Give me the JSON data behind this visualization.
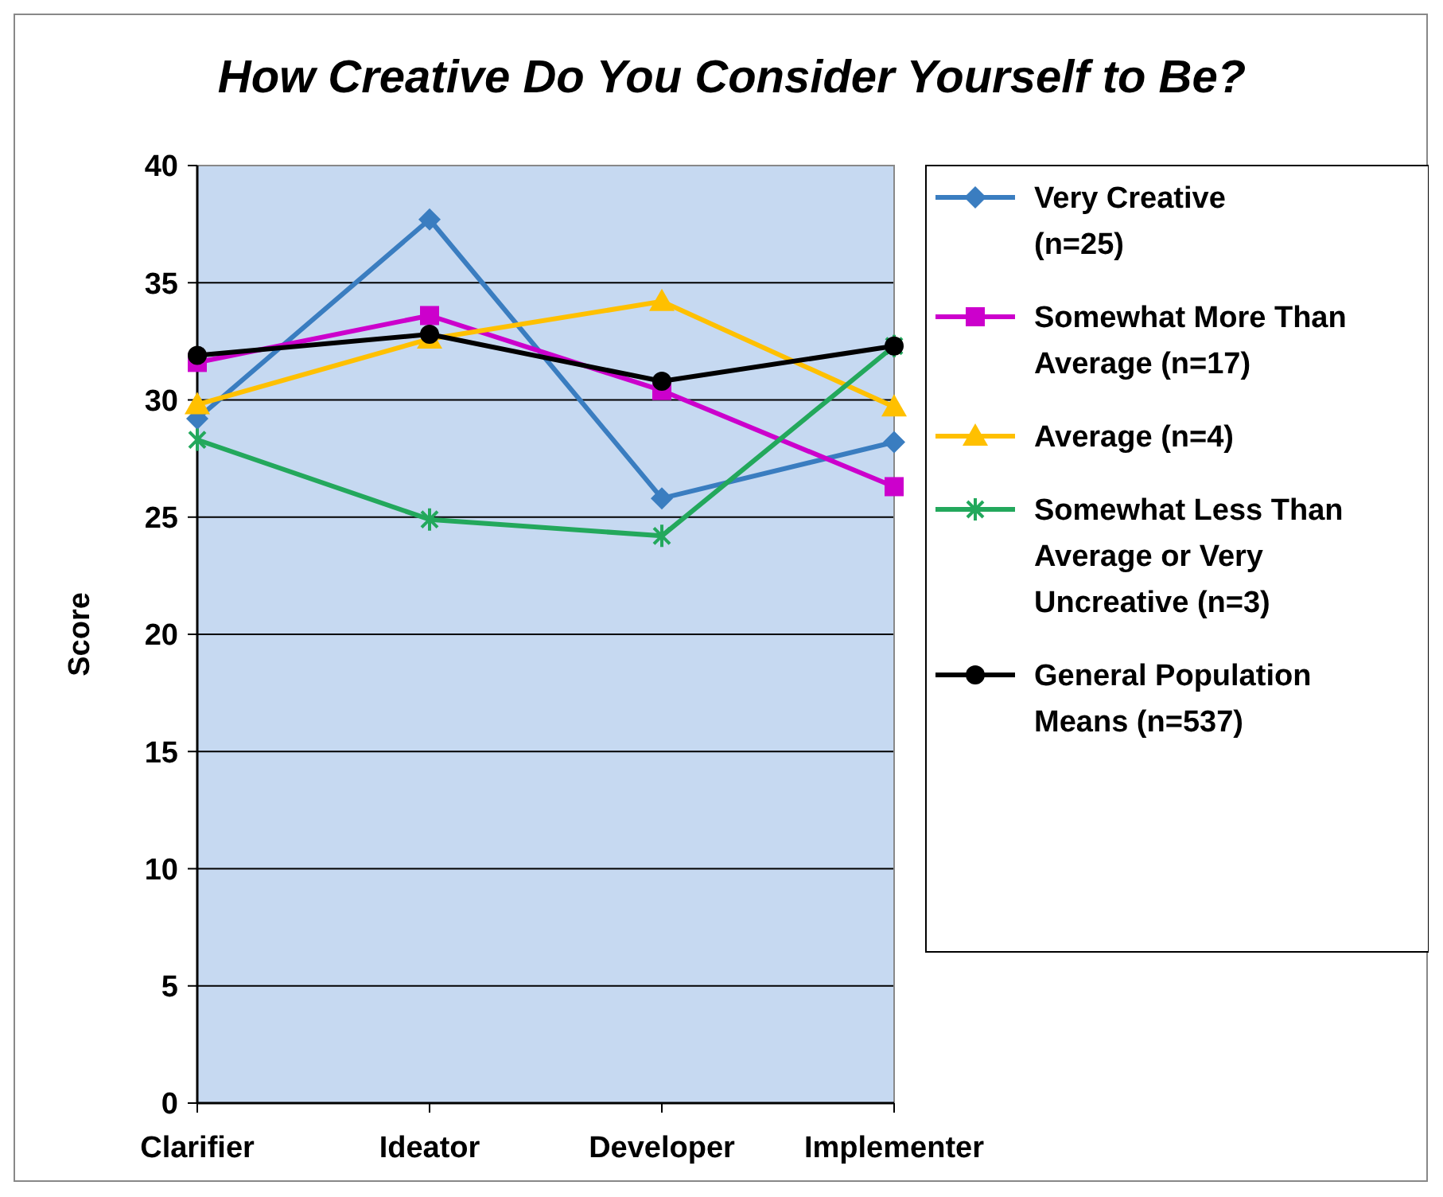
{
  "chart_data": {
    "type": "line",
    "title": "How Creative Do You Consider Yourself to Be?",
    "ylabel": "Score",
    "categories": [
      "Clarifier",
      "Ideator",
      "Developer",
      "Implementer"
    ],
    "series": [
      {
        "name": "Very Creative (n=25)",
        "color": "#3a7dc0",
        "marker": "diamond",
        "values": [
          29.2,
          37.7,
          25.8,
          28.2
        ]
      },
      {
        "name": "Somewhat More Than Average (n=17)",
        "color": "#cc00cc",
        "marker": "square",
        "values": [
          31.6,
          33.6,
          30.4,
          26.3
        ]
      },
      {
        "name": "Average (n=4)",
        "color": "#ffc000",
        "marker": "triangle",
        "values": [
          29.8,
          32.6,
          34.2,
          29.7
        ]
      },
      {
        "name": "Somewhat Less Than Average or Very Uncreative (n=3)",
        "color": "#23a85c",
        "marker": "cross",
        "values": [
          28.3,
          24.9,
          24.2,
          32.3
        ]
      },
      {
        "name": "General Population Means (n=537)",
        "color": "#000000",
        "marker": "circle",
        "values": [
          31.9,
          32.8,
          30.8,
          32.3
        ]
      }
    ],
    "ylim": [
      0,
      40
    ],
    "yticks": [
      0,
      5,
      10,
      15,
      20,
      25,
      30,
      35,
      40
    ],
    "grid": "y",
    "legend": "right",
    "line_style": "solid"
  }
}
